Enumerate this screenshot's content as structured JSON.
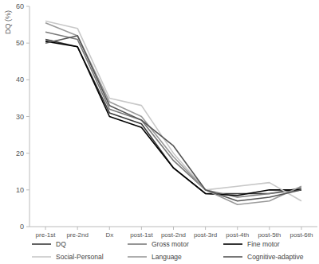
{
  "chart_data": {
    "type": "line",
    "y_label": "DQ (%)",
    "categories": [
      "pre-1st",
      "pre-2nd",
      "Dx",
      "post-1st",
      "post-2nd",
      "post-3rd",
      "post-4th",
      "post-5th",
      "post-6th"
    ],
    "series": [
      {
        "name": "DQ",
        "color": "#3a3a3a",
        "values": [
          51,
          49,
          31,
          28,
          16,
          9,
          9,
          9,
          10.5
        ]
      },
      {
        "name": "Gross motor",
        "color": "#7a7a7a",
        "values": [
          53,
          51,
          32,
          29,
          18,
          10,
          8,
          9,
          10
        ]
      },
      {
        "name": "Fine motor",
        "color": "#000000",
        "values": [
          50.5,
          49,
          30,
          27,
          16,
          9,
          8.5,
          10,
          10
        ]
      },
      {
        "name": "Social-Personal",
        "color": "#c8c8c8",
        "values": [
          56,
          54,
          35,
          33,
          20,
          10,
          11,
          12,
          7
        ]
      },
      {
        "name": "Language",
        "color": "#9a9a9a",
        "values": [
          55.5,
          52,
          34,
          30,
          19,
          10,
          6,
          7,
          11
        ]
      },
      {
        "name": "Cognitive-adaptive",
        "color": "#555555",
        "values": [
          50,
          52,
          33,
          29,
          22,
          10,
          7,
          8,
          10
        ]
      }
    ],
    "ylim": [
      0,
      60
    ],
    "yticks": [
      0,
      10,
      20,
      30,
      40,
      50,
      60
    ],
    "grid": false,
    "legend": "bottom"
  }
}
